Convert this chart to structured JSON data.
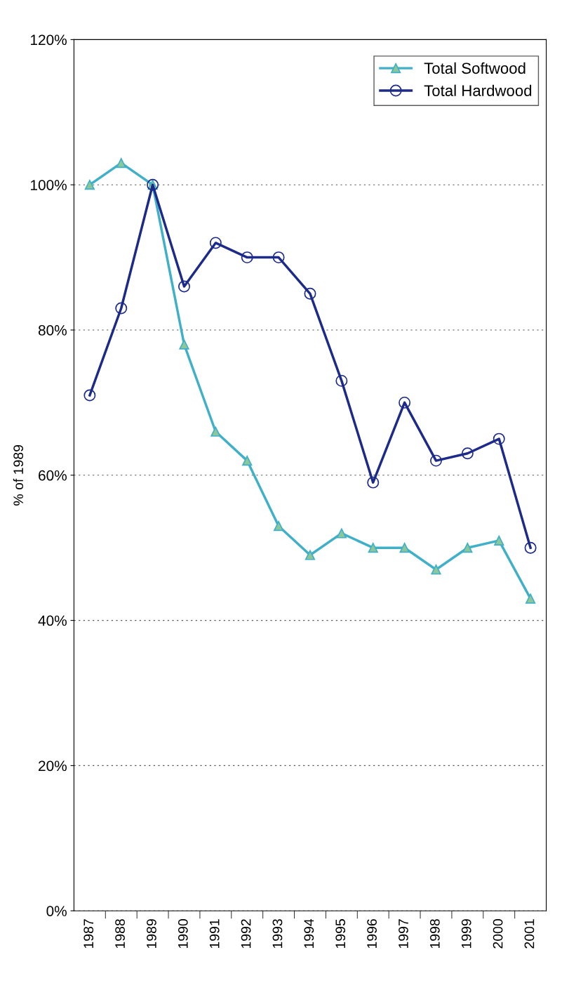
{
  "chart_data": {
    "type": "line",
    "xlabel": null,
    "ylabel": "% of 1989",
    "categories": [
      "1987",
      "1988",
      "1989",
      "1990",
      "1991",
      "1992",
      "1993",
      "1994",
      "1995",
      "1996",
      "1997",
      "1998",
      "1999",
      "2000",
      "2001"
    ],
    "series": [
      {
        "name": "Total Softwood",
        "color": "#3fb0c8",
        "marker": "triangle",
        "values": [
          100,
          103,
          100,
          78,
          66,
          62,
          53,
          49,
          52,
          50,
          50,
          47,
          50,
          51,
          43
        ]
      },
      {
        "name": "Total Hardwood",
        "color": "#1c2a8a",
        "marker": "circle",
        "values": [
          71,
          83,
          100,
          86,
          92,
          90,
          90,
          85,
          73,
          59,
          70,
          62,
          63,
          65,
          50
        ]
      }
    ],
    "ylim": [
      0,
      120
    ],
    "yticks": [
      {
        "value": 0,
        "label": "0%"
      },
      {
        "value": 20,
        "label": "20%"
      },
      {
        "value": 40,
        "label": "40%"
      },
      {
        "value": 60,
        "label": "60%"
      },
      {
        "value": 80,
        "label": "80%"
      },
      {
        "value": 100,
        "label": "100%"
      },
      {
        "value": 120,
        "label": "120%"
      }
    ],
    "grid": "y",
    "legend": "top right"
  }
}
